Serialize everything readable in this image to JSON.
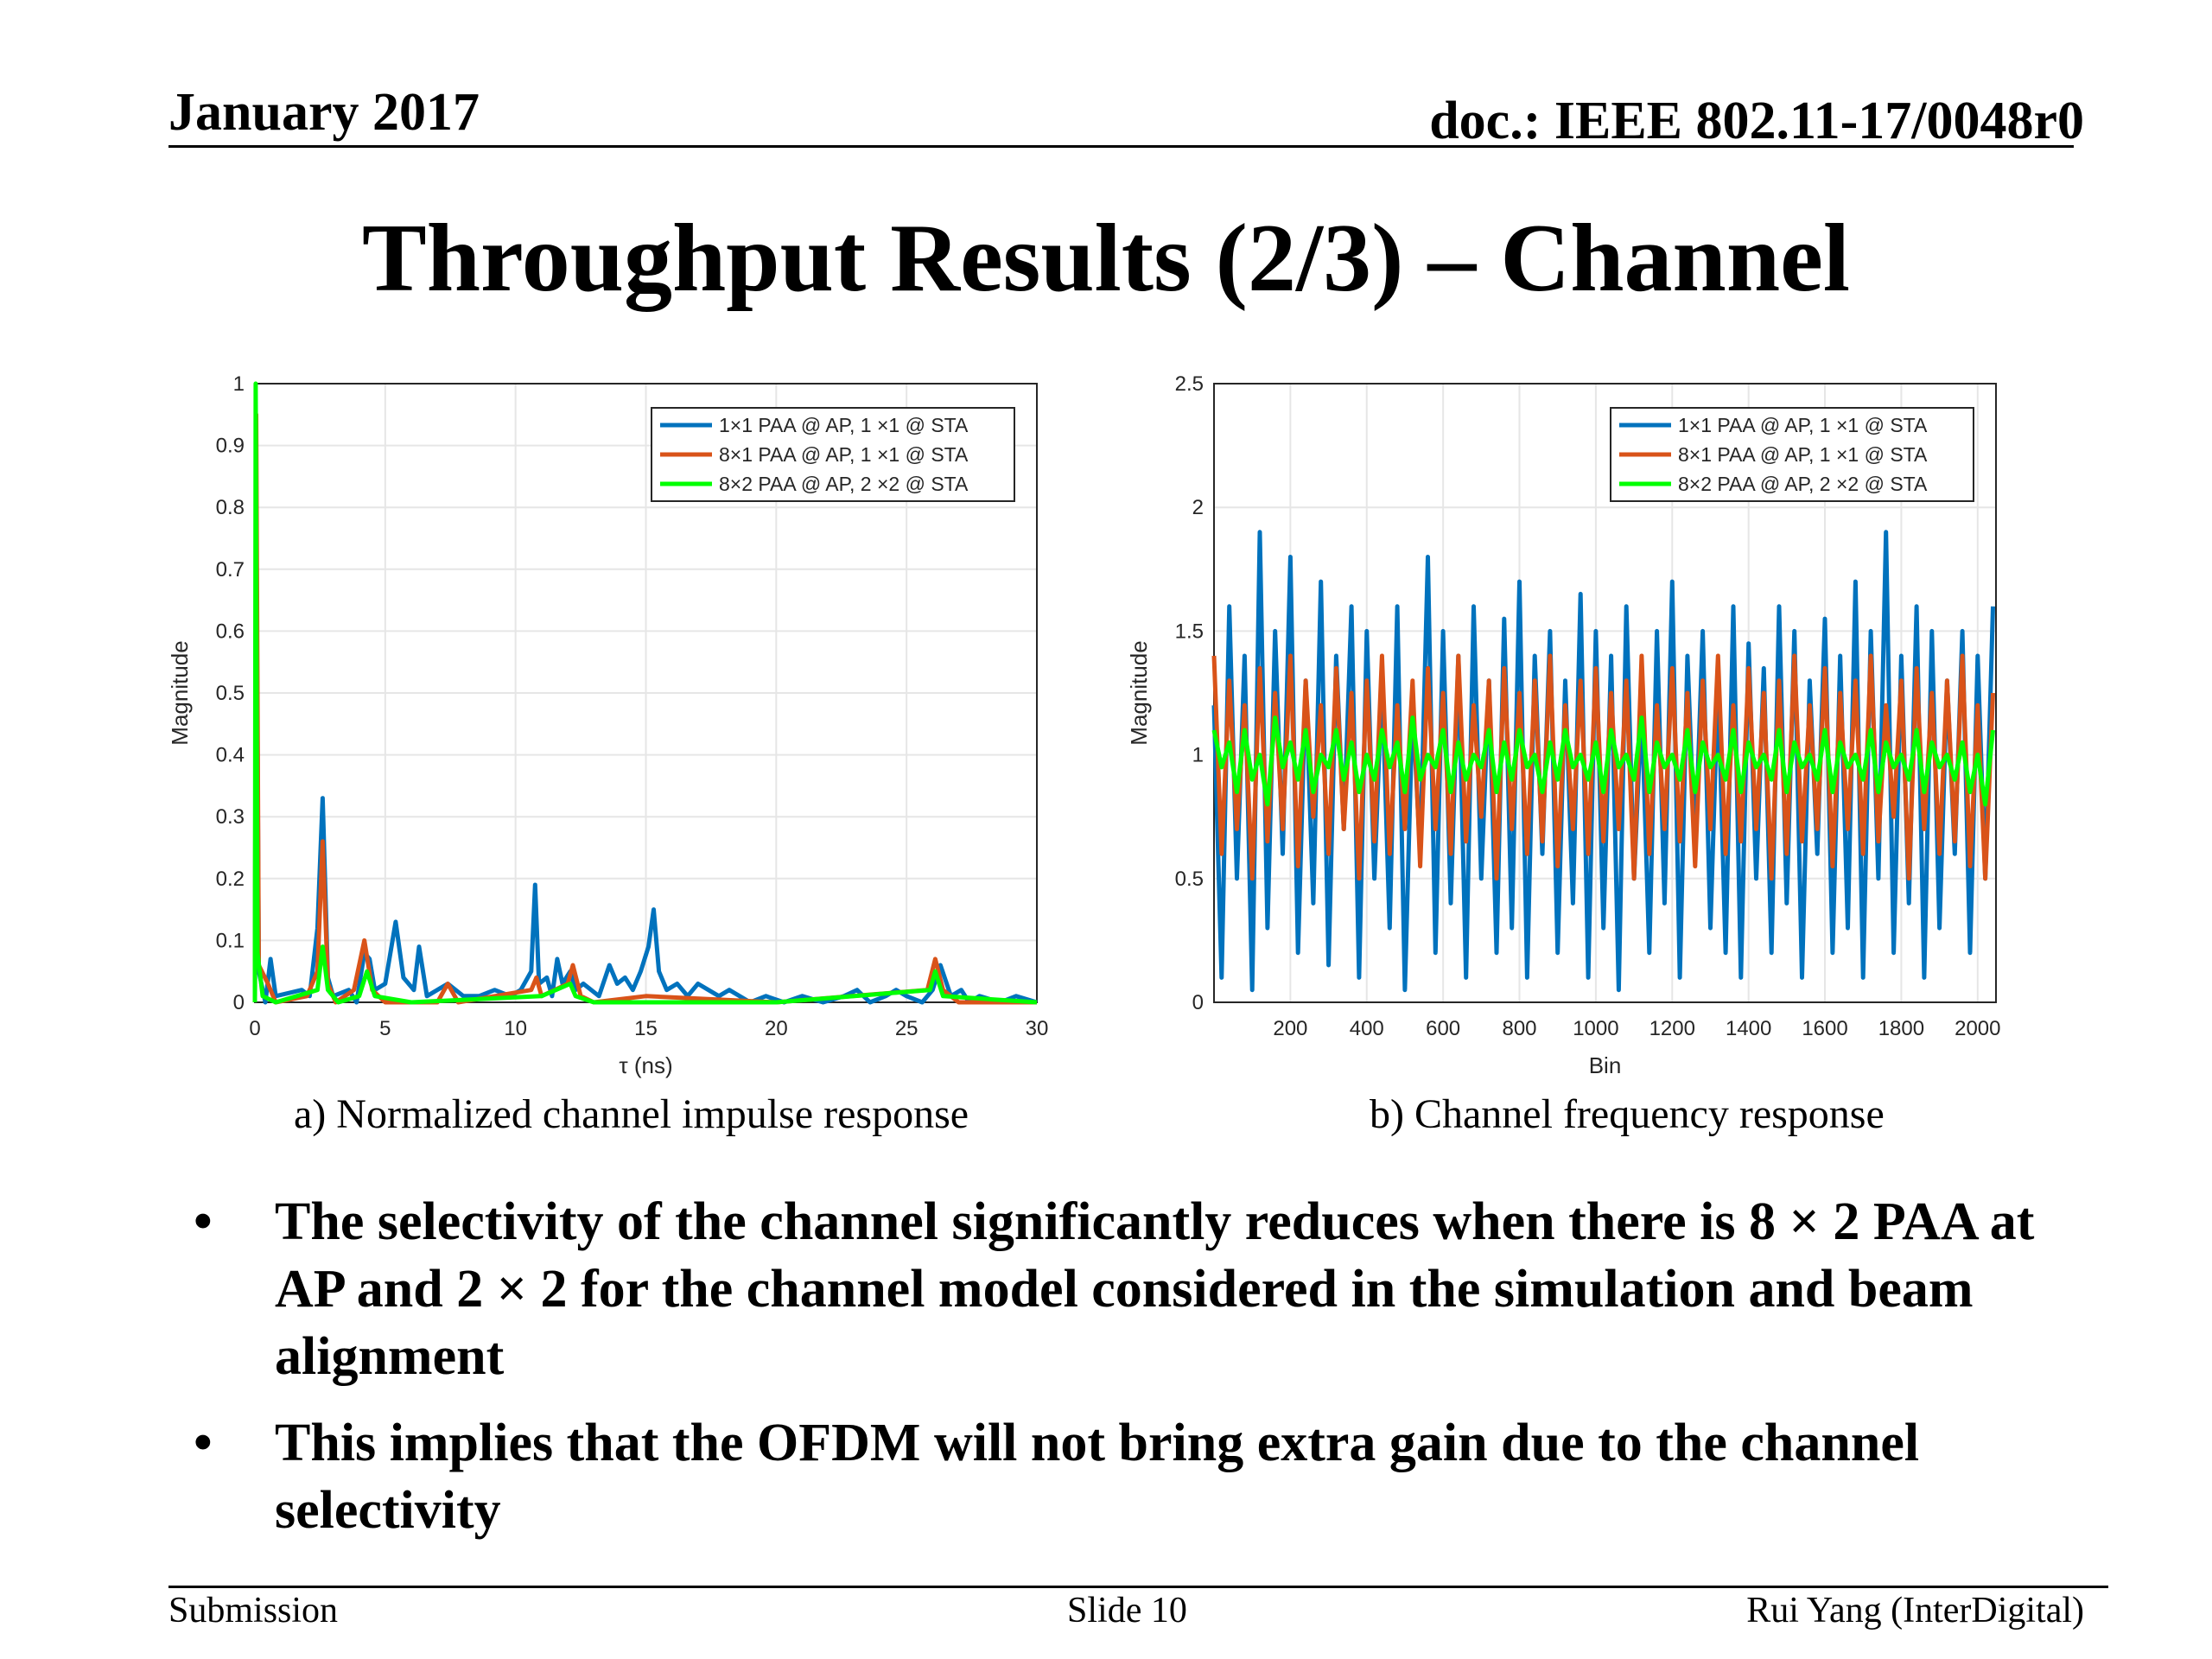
{
  "header": {
    "date": "January 2017",
    "doc": "doc.: IEEE 802.11-17/0048r0"
  },
  "title": "Throughput Results (2/3) – Channel",
  "colors": {
    "series1": "#0072BD",
    "series2": "#D95319",
    "series3": "#00FF00"
  },
  "captions": {
    "a": "a) Normalized channel impulse response",
    "b": "b) Channel frequency response"
  },
  "bullets": [
    "The selectivity of the channel significantly reduces when there is 8 × 2 PAA at AP and 2 × 2 for the channel model considered in the simulation and beam alignment",
    "This implies that the OFDM will not bring extra gain due to the channel selectivity"
  ],
  "footer": {
    "left": "Submission",
    "center": "Slide 10",
    "right": "Rui Yang (InterDigital)"
  },
  "chart_data": [
    {
      "type": "line",
      "xlabel": "τ (ns)",
      "ylabel": "Magnitude",
      "xlim": [
        0,
        30
      ],
      "ylim": [
        0,
        1
      ],
      "xticks": [
        "0",
        "5",
        "10",
        "15",
        "20",
        "25",
        "30"
      ],
      "yticks": [
        "0",
        "0.1",
        "0.2",
        "0.3",
        "0.4",
        "0.5",
        "0.6",
        "0.7",
        "0.8",
        "0.9",
        "1"
      ],
      "grid": true,
      "legend": "top-right",
      "series": [
        {
          "name": "1×1 PAA @ AP, 1 ×1 @ STA",
          "x": [
            0,
            0.05,
            0.15,
            0.4,
            0.6,
            0.8,
            1.8,
            2.1,
            2.4,
            2.6,
            2.8,
            3.0,
            3.6,
            3.9,
            4.2,
            4.4,
            4.6,
            5.0,
            5.4,
            5.7,
            6.1,
            6.3,
            6.6,
            7.4,
            8.0,
            8.6,
            9.2,
            9.8,
            10.2,
            10.6,
            10.75,
            10.9,
            11.2,
            11.4,
            11.6,
            11.8,
            12.1,
            12.3,
            12.6,
            13.2,
            13.6,
            13.9,
            14.2,
            14.5,
            14.8,
            15.1,
            15.3,
            15.5,
            15.8,
            16.2,
            16.6,
            17.0,
            17.4,
            17.8,
            18.2,
            19.0,
            19.6,
            20.3,
            21.0,
            21.8,
            22.6,
            23.1,
            23.6,
            24.2,
            24.6,
            25.0,
            25.6,
            26.0,
            26.3,
            26.7,
            27.1,
            27.4,
            27.8,
            28.6,
            29.2,
            30
          ],
          "y": [
            0,
            0.8,
            0.05,
            0.0,
            0.07,
            0.01,
            0.02,
            0.01,
            0.12,
            0.33,
            0.04,
            0.01,
            0.02,
            0.0,
            0.08,
            0.07,
            0.02,
            0.03,
            0.13,
            0.04,
            0.02,
            0.09,
            0.01,
            0.03,
            0.01,
            0.01,
            0.02,
            0.01,
            0.02,
            0.05,
            0.19,
            0.03,
            0.04,
            0.01,
            0.07,
            0.03,
            0.05,
            0.02,
            0.03,
            0.01,
            0.06,
            0.03,
            0.04,
            0.02,
            0.05,
            0.09,
            0.15,
            0.05,
            0.02,
            0.03,
            0.01,
            0.03,
            0.02,
            0.01,
            0.02,
            0.0,
            0.01,
            0.0,
            0.01,
            0.0,
            0.01,
            0.02,
            0.0,
            0.01,
            0.02,
            0.01,
            0.0,
            0.02,
            0.06,
            0.01,
            0.02,
            0.0,
            0.01,
            0.0,
            0.01,
            0.0
          ]
        },
        {
          "name": "8×1 PAA @ AP, 1 ×1 @ STA",
          "x": [
            0,
            0.05,
            0.15,
            0.5,
            0.8,
            2.0,
            2.4,
            2.6,
            2.8,
            3.1,
            3.8,
            4.2,
            4.5,
            5.0,
            7.0,
            7.4,
            7.8,
            10.6,
            10.8,
            11.0,
            11.5,
            12.0,
            12.2,
            12.5,
            13.0,
            15.0,
            20.0,
            25.8,
            26.1,
            26.4,
            27.0,
            30
          ],
          "y": [
            0,
            0.95,
            0.06,
            0.03,
            0.0,
            0.01,
            0.05,
            0.26,
            0.03,
            0.0,
            0.02,
            0.1,
            0.02,
            0.0,
            0.0,
            0.03,
            0.0,
            0.02,
            0.04,
            0.01,
            0.02,
            0.03,
            0.06,
            0.01,
            0.0,
            0.01,
            0.0,
            0.02,
            0.07,
            0.02,
            0.0,
            0.0
          ]
        },
        {
          "name": "8×2 PAA @ AP, 2 ×2 @ STA",
          "x": [
            0,
            0.03,
            0.1,
            0.3,
            0.8,
            2.4,
            2.6,
            2.8,
            3.2,
            4.0,
            4.3,
            4.6,
            6.0,
            11.0,
            12.1,
            12.3,
            13.0,
            20.0,
            25.9,
            26.1,
            26.4,
            30
          ],
          "y": [
            0,
            1.0,
            0.08,
            0.01,
            0.0,
            0.02,
            0.09,
            0.02,
            0.0,
            0.01,
            0.05,
            0.01,
            0.0,
            0.01,
            0.03,
            0.01,
            0.0,
            0.0,
            0.02,
            0.05,
            0.01,
            0.0
          ]
        }
      ]
    },
    {
      "type": "line",
      "xlabel": "Bin",
      "ylabel": "Magnitude",
      "xlim": [
        0,
        2048
      ],
      "ylim": [
        0,
        2.5
      ],
      "xticks": [
        "200",
        "400",
        "600",
        "800",
        "1000",
        "1200",
        "1400",
        "1600",
        "1800",
        "2000"
      ],
      "yticks": [
        "0",
        "0.5",
        "1",
        "1.5",
        "2",
        "2.5"
      ],
      "grid": true,
      "legend": "top-right",
      "series": [
        {
          "name": "1×1 PAA @ AP, 1 ×1 @ STA",
          "x": [
            0,
            20,
            40,
            60,
            80,
            100,
            120,
            140,
            160,
            180,
            200,
            220,
            240,
            260,
            280,
            300,
            320,
            340,
            360,
            380,
            400,
            420,
            440,
            460,
            480,
            500,
            520,
            540,
            560,
            580,
            600,
            620,
            640,
            660,
            680,
            700,
            720,
            740,
            760,
            780,
            800,
            820,
            840,
            860,
            880,
            900,
            920,
            940,
            960,
            980,
            1000,
            1020,
            1040,
            1060,
            1080,
            1100,
            1120,
            1140,
            1160,
            1180,
            1200,
            1220,
            1240,
            1260,
            1280,
            1300,
            1320,
            1340,
            1360,
            1380,
            1400,
            1420,
            1440,
            1460,
            1480,
            1500,
            1520,
            1540,
            1560,
            1580,
            1600,
            1620,
            1640,
            1660,
            1680,
            1700,
            1720,
            1740,
            1760,
            1780,
            1800,
            1820,
            1840,
            1860,
            1880,
            1900,
            1920,
            1940,
            1960,
            1980,
            2000,
            2020,
            2040
          ],
          "y": [
            1.2,
            0.1,
            1.6,
            0.5,
            1.4,
            0.05,
            1.9,
            0.3,
            1.5,
            0.6,
            1.8,
            0.2,
            1.3,
            0.4,
            1.7,
            0.15,
            1.4,
            0.7,
            1.6,
            0.1,
            1.5,
            0.5,
            1.3,
            0.3,
            1.6,
            0.05,
            1.2,
            0.6,
            1.8,
            0.2,
            1.5,
            0.4,
            1.4,
            0.1,
            1.6,
            0.5,
            1.3,
            0.2,
            1.55,
            0.3,
            1.7,
            0.1,
            1.4,
            0.6,
            1.5,
            0.2,
            1.3,
            0.4,
            1.65,
            0.1,
            1.5,
            0.3,
            1.4,
            0.05,
            1.6,
            0.5,
            1.2,
            0.2,
            1.5,
            0.4,
            1.7,
            0.1,
            1.4,
            0.6,
            1.5,
            0.3,
            1.3,
            0.2,
            1.6,
            0.1,
            1.45,
            0.5,
            1.35,
            0.2,
            1.6,
            0.4,
            1.5,
            0.1,
            1.3,
            0.6,
            1.55,
            0.2,
            1.4,
            0.3,
            1.7,
            0.1,
            1.5,
            0.5,
            1.9,
            0.2,
            1.4,
            0.4,
            1.6,
            0.1,
            1.5,
            0.3,
            1.3,
            0.6,
            1.5,
            0.2,
            1.4,
            0.5,
            1.6
          ]
        },
        {
          "name": "8×1 PAA @ AP, 1 ×1 @ STA",
          "x": [
            0,
            20,
            40,
            60,
            80,
            100,
            120,
            140,
            160,
            180,
            200,
            220,
            240,
            260,
            280,
            300,
            320,
            340,
            360,
            380,
            400,
            420,
            440,
            460,
            480,
            500,
            520,
            540,
            560,
            580,
            600,
            620,
            640,
            660,
            680,
            700,
            720,
            740,
            760,
            780,
            800,
            820,
            840,
            860,
            880,
            900,
            920,
            940,
            960,
            980,
            1000,
            1020,
            1040,
            1060,
            1080,
            1100,
            1120,
            1140,
            1160,
            1180,
            1200,
            1220,
            1240,
            1260,
            1280,
            1300,
            1320,
            1340,
            1360,
            1380,
            1400,
            1420,
            1440,
            1460,
            1480,
            1500,
            1520,
            1540,
            1560,
            1580,
            1600,
            1620,
            1640,
            1660,
            1680,
            1700,
            1720,
            1740,
            1760,
            1780,
            1800,
            1820,
            1840,
            1860,
            1880,
            1900,
            1920,
            1940,
            1960,
            1980,
            2000,
            2020,
            2040
          ],
          "y": [
            1.4,
            0.6,
            1.3,
            0.7,
            1.2,
            0.5,
            1.35,
            0.65,
            1.25,
            0.7,
            1.4,
            0.55,
            1.3,
            0.75,
            1.2,
            0.6,
            1.35,
            0.7,
            1.25,
            0.5,
            1.3,
            0.65,
            1.4,
            0.6,
            1.2,
            0.7,
            1.3,
            0.55,
            1.35,
            0.7,
            1.25,
            0.6,
            1.4,
            0.65,
            1.2,
            0.75,
            1.3,
            0.5,
            1.35,
            0.7,
            1.25,
            0.6,
            1.3,
            0.65,
            1.4,
            0.55,
            1.2,
            0.7,
            1.3,
            0.6,
            1.35,
            0.65,
            1.25,
            0.7,
            1.3,
            0.5,
            1.4,
            0.6,
            1.2,
            0.7,
            1.35,
            0.65,
            1.25,
            0.55,
            1.3,
            0.7,
            1.4,
            0.6,
            1.2,
            0.65,
            1.35,
            0.7,
            1.25,
            0.5,
            1.3,
            0.6,
            1.4,
            0.65,
            1.2,
            0.7,
            1.35,
            0.55,
            1.25,
            0.7,
            1.3,
            0.6,
            1.4,
            0.65,
            1.2,
            0.75,
            1.3,
            0.5,
            1.35,
            0.7,
            1.25,
            0.6,
            1.3,
            0.65,
            1.4,
            0.55,
            1.2,
            0.5,
            1.25
          ]
        },
        {
          "name": "8×2 PAA @ AP, 2 ×2 @ STA",
          "x": [
            0,
            20,
            40,
            60,
            80,
            100,
            120,
            140,
            160,
            180,
            200,
            220,
            240,
            260,
            280,
            300,
            320,
            340,
            360,
            380,
            400,
            420,
            440,
            460,
            480,
            500,
            520,
            540,
            560,
            580,
            600,
            620,
            640,
            660,
            680,
            700,
            720,
            740,
            760,
            780,
            800,
            820,
            840,
            860,
            880,
            900,
            920,
            940,
            960,
            980,
            1000,
            1020,
            1040,
            1060,
            1080,
            1100,
            1120,
            1140,
            1160,
            1180,
            1200,
            1220,
            1240,
            1260,
            1280,
            1300,
            1320,
            1340,
            1360,
            1380,
            1400,
            1420,
            1440,
            1460,
            1480,
            1500,
            1520,
            1540,
            1560,
            1580,
            1600,
            1620,
            1640,
            1660,
            1680,
            1700,
            1720,
            1740,
            1760,
            1780,
            1800,
            1820,
            1840,
            1860,
            1880,
            1900,
            1920,
            1940,
            1960,
            1980,
            2000,
            2020,
            2040
          ],
          "y": [
            1.1,
            0.95,
            1.05,
            0.85,
            1.1,
            0.9,
            1.0,
            0.8,
            1.15,
            0.95,
            1.05,
            0.9,
            1.1,
            0.85,
            1.0,
            0.95,
            1.1,
            0.9,
            1.05,
            0.85,
            1.0,
            0.9,
            1.1,
            0.95,
            1.05,
            0.85,
            1.15,
            0.9,
            1.0,
            0.95,
            1.1,
            0.85,
            1.05,
            0.9,
            1.0,
            0.95,
            1.1,
            0.85,
            1.05,
            0.9,
            1.1,
            0.95,
            1.0,
            0.85,
            1.05,
            0.9,
            1.1,
            0.95,
            1.0,
            0.9,
            1.05,
            0.85,
            1.1,
            0.95,
            1.0,
            0.9,
            1.15,
            0.85,
            1.05,
            0.95,
            1.0,
            0.9,
            1.1,
            0.85,
            1.05,
            0.95,
            1.0,
            0.9,
            1.1,
            0.85,
            1.05,
            0.95,
            1.0,
            0.9,
            1.1,
            0.85,
            1.05,
            0.95,
            1.0,
            0.9,
            1.1,
            0.85,
            1.05,
            0.95,
            1.0,
            0.9,
            1.1,
            0.85,
            1.05,
            0.95,
            1.0,
            0.9,
            1.1,
            0.85,
            1.05,
            0.95,
            1.0,
            0.9,
            1.05,
            0.85,
            1.0,
            0.8,
            1.1
          ]
        }
      ]
    }
  ]
}
